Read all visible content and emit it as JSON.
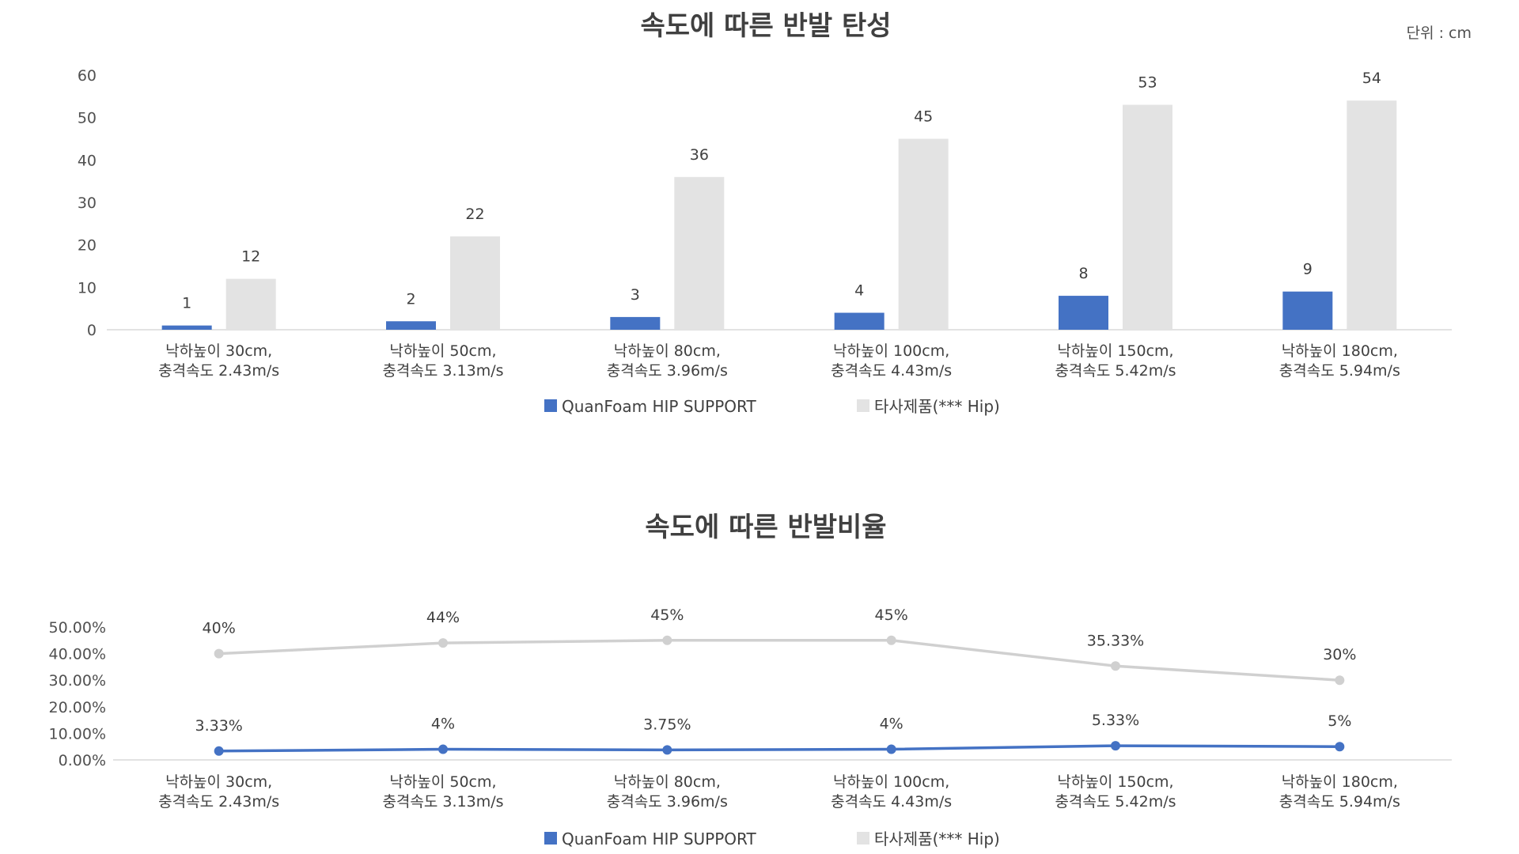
{
  "unit_label": "단위 : cm",
  "colors": {
    "primary": "#4472C4",
    "secondary": "#E3E3E3",
    "secondary_line": "#D0D0D0",
    "axis": "#D9D9D9"
  },
  "chart_data": [
    {
      "type": "bar",
      "title": "속도에 따른 반발 탄성",
      "categories": [
        [
          "낙하높이 30cm,",
          "충격속도 2.43m/s"
        ],
        [
          "낙하높이 50cm,",
          "충격속도 3.13m/s"
        ],
        [
          "낙하높이 80cm,",
          "충격속도 3.96m/s"
        ],
        [
          "낙하높이 100cm,",
          "충격속도 4.43m/s"
        ],
        [
          "낙하높이 150cm,",
          "충격속도 5.42m/s"
        ],
        [
          "낙하높이 180cm,",
          "충격속도 5.94m/s"
        ]
      ],
      "series": [
        {
          "name": "QuanFoam HIP SUPPORT",
          "values": [
            1,
            2,
            3,
            4,
            8,
            9
          ],
          "labels": [
            "1",
            "2",
            "3",
            "4",
            "8",
            "9"
          ]
        },
        {
          "name": "타사제품(*** Hip)",
          "values": [
            12,
            22,
            36,
            45,
            53,
            54
          ],
          "labels": [
            "12",
            "22",
            "36",
            "45",
            "53",
            "54"
          ]
        }
      ],
      "ylim": [
        0,
        60
      ],
      "yticks": [
        "0",
        "10",
        "20",
        "30",
        "40",
        "50",
        "60"
      ],
      "grid": false,
      "legend": "bottom"
    },
    {
      "type": "line",
      "title": "속도에 따른 반발비율",
      "categories": [
        [
          "낙하높이 30cm,",
          "충격속도 2.43m/s"
        ],
        [
          "낙하높이 50cm,",
          "충격속도 3.13m/s"
        ],
        [
          "낙하높이 80cm,",
          "충격속도 3.96m/s"
        ],
        [
          "낙하높이 100cm,",
          "충격속도 4.43m/s"
        ],
        [
          "낙하높이 150cm,",
          "충격속도 5.42m/s"
        ],
        [
          "낙하높이 180cm,",
          "충격속도 5.94m/s"
        ]
      ],
      "series": [
        {
          "name": "QuanFoam HIP SUPPORT",
          "values": [
            3.33,
            4,
            3.75,
            4,
            5.33,
            5
          ],
          "labels": [
            "3.33%",
            "4%",
            "3.75%",
            "4%",
            "5.33%",
            "5%"
          ]
        },
        {
          "name": "타사제품(*** Hip)",
          "values": [
            40,
            44,
            45,
            45,
            35.33,
            30
          ],
          "labels": [
            "40%",
            "44%",
            "45%",
            "45%",
            "35.33%",
            "30%"
          ]
        }
      ],
      "ylim": [
        0,
        50
      ],
      "yticks": [
        "0.00%",
        "10.00%",
        "20.00%",
        "30.00%",
        "40.00%",
        "50.00%"
      ],
      "grid": false,
      "legend": "bottom"
    }
  ]
}
